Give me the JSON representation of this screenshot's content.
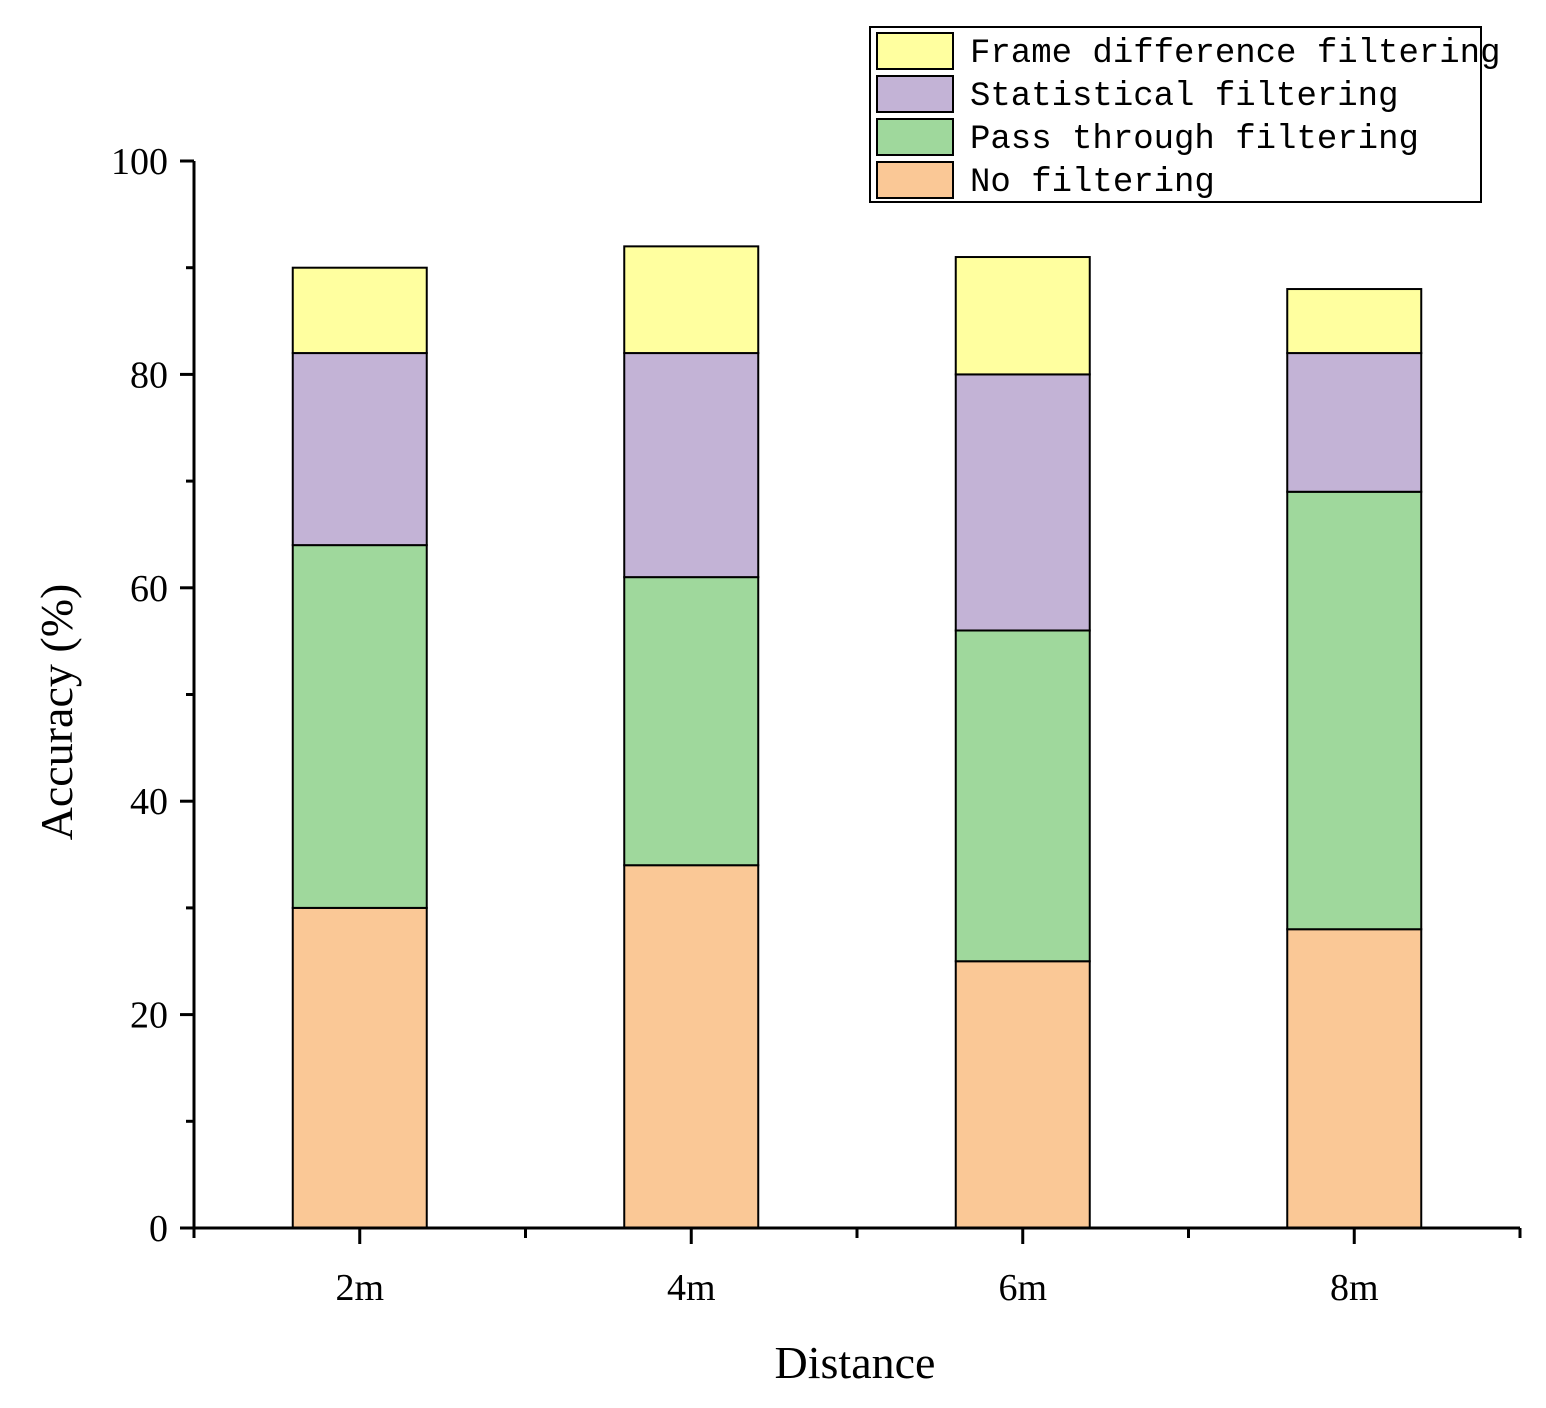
{
  "chart_data": {
    "type": "bar",
    "stacked": true,
    "title": "",
    "xlabel": "Distance",
    "ylabel": "Accuracy (%)",
    "ylim": [
      0,
      100
    ],
    "yticks": [
      0,
      20,
      40,
      60,
      80,
      100
    ],
    "categories": [
      "2m",
      "4m",
      "6m",
      "8m"
    ],
    "legend_position": "top-right",
    "series": [
      {
        "name": "No filtering",
        "color": "#FAC896",
        "cumulative": [
          30,
          34,
          25,
          28
        ]
      },
      {
        "name": "Pass through filtering",
        "color": "#9FD89C",
        "cumulative": [
          64,
          61,
          56,
          69
        ]
      },
      {
        "name": "Statistical filtering",
        "color": "#C3B3D6",
        "cumulative": [
          82,
          82,
          80,
          82
        ]
      },
      {
        "name": "Frame difference filtering",
        "color": "#FFFF9F",
        "cumulative": [
          90,
          92,
          91,
          88
        ]
      }
    ]
  }
}
